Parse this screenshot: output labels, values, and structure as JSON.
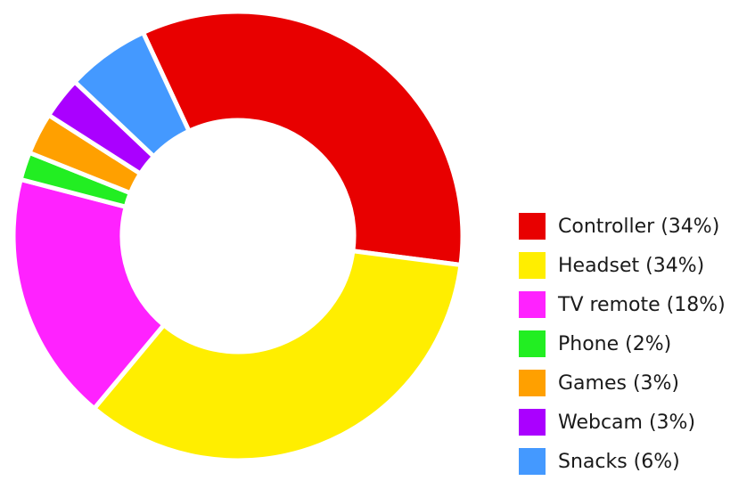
{
  "chart_data": {
    "type": "pie",
    "donut": true,
    "title": "",
    "start_angle_deg": -25,
    "slices": [
      {
        "label": "Controller",
        "value": 34,
        "color": "#e80000"
      },
      {
        "label": "Headset",
        "value": 34,
        "color": "#ffee00"
      },
      {
        "label": "TV remote",
        "value": 18,
        "color": "#ff22ff"
      },
      {
        "label": "Phone",
        "value": 2,
        "color": "#22ee22"
      },
      {
        "label": "Games",
        "value": 3,
        "color": "#ffa000"
      },
      {
        "label": "Webcam",
        "value": 3,
        "color": "#aa00ff"
      },
      {
        "label": "Snacks",
        "value": 6,
        "color": "#4499ff"
      }
    ],
    "legend": {
      "placement": "right",
      "items": [
        "Controller (34%)",
        "Headset (34%)",
        "TV remote (18%)",
        "Phone (2%)",
        "Games (3%)",
        "Webcam (3%)",
        "Snacks (6%)"
      ]
    }
  }
}
